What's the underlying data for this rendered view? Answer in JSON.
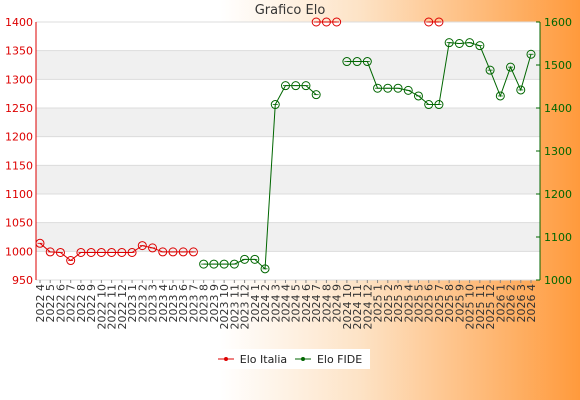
{
  "chart_data": {
    "type": "line",
    "title": "Grafico Elo",
    "xlabel": "",
    "ylabel_left": "",
    "ylabel_right": "",
    "ylim_left": [
      950,
      1400
    ],
    "ylim_right": [
      1000,
      1600
    ],
    "yticks_left": [
      950,
      1000,
      1050,
      1100,
      1150,
      1200,
      1250,
      1300,
      1350,
      1400
    ],
    "yticks_right": [
      1000,
      1100,
      1200,
      1300,
      1400,
      1500,
      1600
    ],
    "grid": true,
    "legend_position": "bottom",
    "categories": [
      "2022 4",
      "2022 5",
      "2022 6",
      "2022 7",
      "2022 8",
      "2022 9",
      "2022 10",
      "2022 11",
      "2022 12",
      "2023 1",
      "2023 2",
      "2023 3",
      "2023 4",
      "2023 5",
      "2023 6",
      "2023 7",
      "2023 8",
      "2023 9",
      "2023 10",
      "2023 11",
      "2023 12",
      "2024 1",
      "2024 2",
      "2024 3",
      "2024 4",
      "2024 5",
      "2024 6",
      "2024 7",
      "2024 8",
      "2024 9",
      "2024 10",
      "2024 11",
      "2024 12",
      "2025 1",
      "2025 2",
      "2025 3",
      "2025 4",
      "2025 5",
      "2025 6",
      "2025 7",
      "2025 8",
      "2025 9",
      "2025 10",
      "2025 11",
      "2025 12",
      "2026 1",
      "2026 2",
      "2026 3",
      "2026 4"
    ],
    "series": [
      {
        "name": "Elo Italia",
        "axis": "left",
        "color": "#dd0000",
        "values": [
          1014,
          999,
          998,
          984,
          998,
          998,
          998,
          998,
          998,
          998,
          1010,
          1006,
          999,
          999,
          999,
          999,
          null,
          null,
          null,
          null,
          null,
          null,
          null,
          null,
          null,
          null,
          null,
          1400,
          1400,
          1400,
          null,
          null,
          null,
          null,
          null,
          null,
          null,
          null,
          1400,
          1400,
          null,
          null,
          null,
          null,
          null,
          null,
          null,
          null,
          null
        ]
      },
      {
        "name": "Elo FIDE",
        "axis": "right",
        "color": "#006600",
        "values": [
          null,
          null,
          null,
          null,
          null,
          null,
          null,
          null,
          null,
          null,
          null,
          null,
          null,
          null,
          null,
          null,
          1037,
          1037,
          1037,
          1037,
          1048,
          1048,
          1026,
          1408,
          1452,
          1452,
          1452,
          1431,
          null,
          null,
          1508,
          1508,
          1508,
          1446,
          1446,
          1446,
          1441,
          1428,
          1408,
          1408,
          1552,
          1550,
          1552,
          1545,
          1488,
          1428,
          1495,
          1442,
          1525
        ]
      }
    ]
  }
}
